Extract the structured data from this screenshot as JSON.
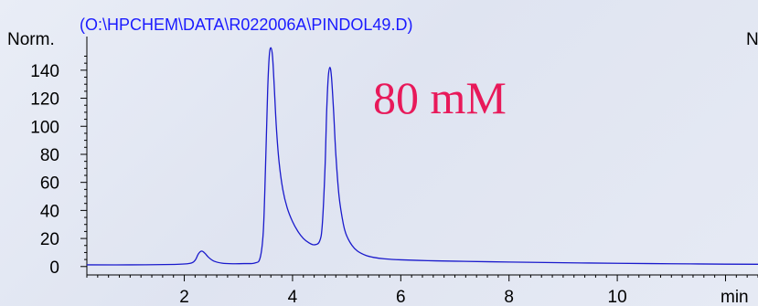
{
  "chart_data": {
    "type": "line",
    "file_path": "(O:\\HPCHEM\\DATA\\R022006A\\PINDOL49.D)",
    "annotation": "80 mM",
    "ylabel": "Norm.",
    "xlabel": "min",
    "right_label": "N",
    "xlim": [
      0.2,
      12.6
    ],
    "ylim": [
      -6,
      164
    ],
    "xticks": [
      2,
      4,
      6,
      8,
      10
    ],
    "yticks": [
      0,
      20,
      40,
      60,
      80,
      100,
      120,
      140
    ],
    "grid": false,
    "series": [
      {
        "color": "#1a1acc",
        "x": [
          0.2,
          1.0,
          1.8,
          2.1,
          2.2,
          2.26,
          2.32,
          2.38,
          2.45,
          2.55,
          2.7,
          2.9,
          3.1,
          3.3,
          3.4,
          3.46,
          3.5,
          3.54,
          3.57,
          3.6,
          3.63,
          3.66,
          3.7,
          3.75,
          3.82,
          3.9,
          4.0,
          4.1,
          4.2,
          4.3,
          4.4,
          4.5,
          4.55,
          4.6,
          4.63,
          4.66,
          4.69,
          4.72,
          4.76,
          4.8,
          4.86,
          4.94,
          5.0,
          5.1,
          5.2,
          5.35,
          5.5,
          5.7,
          6.0,
          6.5,
          7.0,
          8.0,
          9.0,
          10.0,
          11.0,
          12.0,
          12.6
        ],
        "y": [
          1.2,
          1.2,
          1.5,
          2.2,
          4.5,
          9.0,
          11.0,
          9.5,
          6.5,
          3.8,
          2.4,
          2.0,
          2.1,
          2.5,
          6.0,
          25,
          70,
          125,
          150,
          156,
          150,
          130,
          100,
          75,
          55,
          42,
          32,
          25,
          20,
          17,
          15.5,
          18,
          30,
          70,
          110,
          135,
          142,
          135,
          110,
          80,
          50,
          30,
          22,
          15,
          11,
          8,
          6.5,
          5.5,
          4.8,
          4.2,
          3.8,
          3.2,
          2.7,
          2.3,
          2.0,
          1.7,
          1.6
        ]
      }
    ]
  }
}
